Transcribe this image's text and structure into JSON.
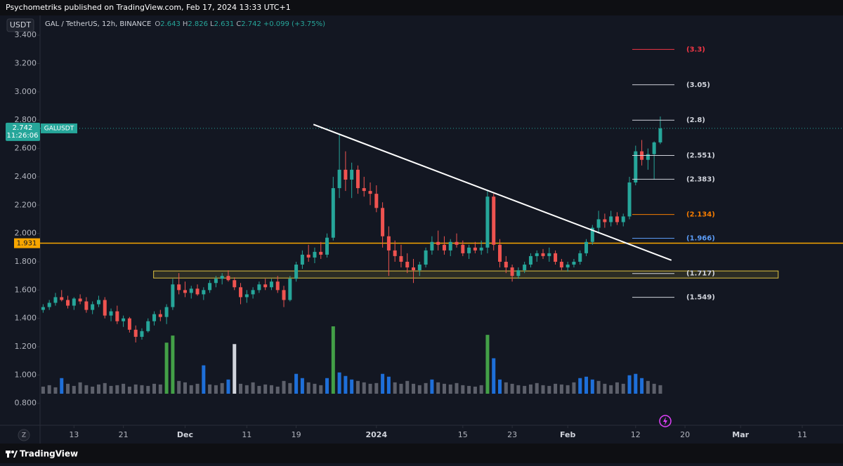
{
  "header": {
    "published": "Psychometriks published on TradingView.com, Feb 17, 2024 13:33 UTC+1"
  },
  "footer": {
    "brand": "TradingView",
    "axis_button": "Z"
  },
  "chart_data": {
    "type": "candlestick",
    "currency": "USDT",
    "symbol": "GAL / TetherUS, 12h, BINANCE",
    "ohlc_legend": [
      {
        "key": "O",
        "value": "2.643"
      },
      {
        "key": "H",
        "value": "2.826"
      },
      {
        "key": "L",
        "value": "2.631"
      },
      {
        "key": "C",
        "value": "2.742"
      }
    ],
    "change": "+0.099 (+3.75%)",
    "up_color": "#26a69a",
    "down_color": "#ef5350",
    "volume_color": "#5d606b",
    "grid": false,
    "x": [
      0,
      1,
      2,
      3,
      4,
      5,
      6,
      7,
      8,
      9,
      10,
      11,
      12,
      13,
      14,
      15,
      16,
      17,
      18,
      19,
      20,
      21,
      22,
      23,
      24,
      25,
      26,
      27,
      28,
      29,
      30,
      31,
      32,
      33,
      34,
      35,
      36,
      37,
      38,
      39,
      40,
      41,
      42,
      43,
      44,
      45,
      46,
      47,
      48,
      49,
      50,
      51,
      52,
      53,
      54,
      55,
      56,
      57,
      58,
      59,
      60,
      61,
      62,
      63,
      64,
      65,
      66,
      67,
      68,
      69,
      70,
      71,
      72,
      73,
      74,
      75,
      76,
      77,
      78,
      79,
      80,
      81,
      82,
      83,
      84,
      85,
      86,
      87,
      88,
      89,
      90,
      91,
      92,
      93,
      94,
      95,
      96,
      97,
      98,
      99,
      100
    ],
    "open": [
      1.46,
      1.48,
      1.51,
      1.55,
      1.53,
      1.49,
      1.54,
      1.52,
      1.46,
      1.5,
      1.53,
      1.42,
      1.45,
      1.38,
      1.4,
      1.32,
      1.27,
      1.31,
      1.38,
      1.43,
      1.41,
      1.48,
      1.64,
      1.6,
      1.58,
      1.61,
      1.57,
      1.6,
      1.65,
      1.68,
      1.7,
      1.67,
      1.62,
      1.55,
      1.57,
      1.6,
      1.64,
      1.62,
      1.66,
      1.6,
      1.53,
      1.68,
      1.78,
      1.85,
      1.83,
      1.87,
      1.85,
      1.97,
      2.32,
      2.45,
      2.38,
      2.45,
      2.32,
      2.3,
      2.28,
      2.18,
      1.98,
      1.88,
      1.84,
      1.8,
      1.76,
      1.74,
      1.78,
      1.88,
      1.94,
      1.92,
      1.88,
      1.94,
      1.92,
      1.86,
      1.9,
      1.88,
      1.9,
      2.26,
      1.92,
      1.8,
      1.76,
      1.7,
      1.74,
      1.78,
      1.84,
      1.86,
      1.84,
      1.86,
      1.8,
      1.76,
      1.78,
      1.8,
      1.86,
      1.94,
      2.04,
      2.1,
      2.08,
      2.12,
      2.08,
      2.12,
      2.36,
      2.58,
      2.52,
      2.56,
      2.643
    ],
    "high": [
      1.5,
      1.53,
      1.58,
      1.6,
      1.56,
      1.55,
      1.57,
      1.55,
      1.52,
      1.56,
      1.55,
      1.47,
      1.49,
      1.42,
      1.41,
      1.35,
      1.33,
      1.4,
      1.45,
      1.46,
      1.5,
      1.68,
      1.72,
      1.66,
      1.63,
      1.64,
      1.62,
      1.67,
      1.7,
      1.72,
      1.74,
      1.69,
      1.65,
      1.6,
      1.62,
      1.66,
      1.68,
      1.68,
      1.7,
      1.63,
      1.7,
      1.8,
      1.88,
      1.92,
      1.9,
      1.94,
      2.0,
      2.4,
      2.7,
      2.58,
      2.5,
      2.48,
      2.4,
      2.36,
      2.34,
      2.22,
      2.05,
      1.95,
      1.92,
      1.86,
      1.82,
      1.8,
      1.9,
      1.98,
      2.02,
      1.98,
      1.96,
      2.0,
      1.95,
      1.92,
      1.94,
      1.95,
      2.3,
      2.28,
      1.96,
      1.84,
      1.78,
      1.76,
      1.8,
      1.86,
      1.88,
      1.89,
      1.9,
      1.88,
      1.82,
      1.8,
      1.82,
      1.88,
      1.96,
      2.06,
      2.16,
      2.14,
      2.16,
      2.15,
      2.14,
      2.4,
      2.62,
      2.66,
      2.6,
      2.65,
      2.826
    ],
    "low": [
      1.44,
      1.46,
      1.49,
      1.52,
      1.47,
      1.46,
      1.5,
      1.44,
      1.43,
      1.48,
      1.4,
      1.38,
      1.36,
      1.34,
      1.3,
      1.23,
      1.25,
      1.3,
      1.35,
      1.38,
      1.36,
      1.46,
      1.57,
      1.55,
      1.54,
      1.56,
      1.53,
      1.58,
      1.62,
      1.64,
      1.66,
      1.6,
      1.5,
      1.51,
      1.54,
      1.58,
      1.6,
      1.6,
      1.58,
      1.48,
      1.52,
      1.66,
      1.75,
      1.8,
      1.79,
      1.82,
      1.83,
      1.95,
      2.25,
      2.3,
      2.25,
      2.28,
      2.26,
      2.2,
      2.15,
      1.9,
      1.7,
      1.8,
      1.76,
      1.72,
      1.65,
      1.7,
      1.76,
      1.85,
      1.88,
      1.85,
      1.84,
      1.9,
      1.84,
      1.82,
      1.86,
      1.85,
      1.86,
      1.88,
      1.76,
      1.72,
      1.66,
      1.68,
      1.72,
      1.76,
      1.8,
      1.82,
      1.8,
      1.78,
      1.74,
      1.73,
      1.76,
      1.78,
      1.84,
      1.92,
      2.0,
      2.04,
      2.05,
      2.06,
      2.05,
      2.1,
      2.34,
      2.48,
      2.45,
      2.38,
      2.631
    ],
    "close": [
      1.48,
      1.51,
      1.55,
      1.53,
      1.49,
      1.54,
      1.52,
      1.46,
      1.5,
      1.53,
      1.42,
      1.45,
      1.38,
      1.4,
      1.32,
      1.27,
      1.31,
      1.38,
      1.43,
      1.41,
      1.48,
      1.64,
      1.6,
      1.58,
      1.61,
      1.57,
      1.6,
      1.65,
      1.68,
      1.7,
      1.67,
      1.62,
      1.55,
      1.57,
      1.6,
      1.64,
      1.62,
      1.66,
      1.6,
      1.53,
      1.68,
      1.78,
      1.85,
      1.83,
      1.87,
      1.85,
      1.97,
      2.32,
      2.45,
      2.38,
      2.45,
      2.32,
      2.3,
      2.28,
      2.18,
      1.98,
      1.88,
      1.84,
      1.8,
      1.76,
      1.74,
      1.78,
      1.88,
      1.94,
      1.92,
      1.88,
      1.94,
      1.92,
      1.86,
      1.9,
      1.88,
      1.9,
      2.26,
      1.92,
      1.8,
      1.76,
      1.7,
      1.74,
      1.78,
      1.84,
      1.86,
      1.84,
      1.86,
      1.8,
      1.76,
      1.78,
      1.8,
      1.86,
      1.94,
      2.04,
      2.1,
      2.08,
      2.12,
      2.08,
      2.12,
      2.36,
      2.58,
      2.52,
      2.56,
      2.643,
      2.742
    ],
    "volume": [
      10,
      12,
      9,
      22,
      14,
      11,
      16,
      12,
      10,
      13,
      15,
      11,
      12,
      14,
      10,
      13,
      12,
      11,
      14,
      13,
      72,
      82,
      18,
      16,
      12,
      14,
      40,
      13,
      12,
      15,
      20,
      70,
      14,
      12,
      16,
      11,
      13,
      12,
      10,
      18,
      15,
      28,
      22,
      16,
      14,
      12,
      22,
      95,
      30,
      25,
      20,
      18,
      16,
      14,
      15,
      28,
      24,
      16,
      14,
      18,
      14,
      12,
      15,
      20,
      16,
      14,
      13,
      15,
      12,
      11,
      10,
      12,
      83,
      50,
      20,
      16,
      14,
      12,
      11,
      13,
      15,
      12,
      11,
      14,
      13,
      12,
      16,
      22,
      24,
      20,
      18,
      14,
      12,
      16,
      14,
      26,
      28,
      22,
      18,
      14,
      12
    ],
    "xlim": [
      -0.5,
      129.6
    ],
    "xticks": [
      {
        "value": 5,
        "label": "13"
      },
      {
        "value": 13,
        "label": "21"
      },
      {
        "value": 23,
        "label": "Dec"
      },
      {
        "value": 33,
        "label": "11"
      },
      {
        "value": 41,
        "label": "19"
      },
      {
        "value": 54,
        "label": "2024"
      },
      {
        "value": 68,
        "label": "15"
      },
      {
        "value": 76,
        "label": "23"
      },
      {
        "value": 85,
        "label": "Feb"
      },
      {
        "value": 96,
        "label": "12"
      },
      {
        "value": 104,
        "label": "20"
      },
      {
        "value": 113,
        "label": "Mar"
      },
      {
        "value": 123,
        "label": "11"
      }
    ],
    "ylim": [
      0.65,
      3.5
    ],
    "yticks": [
      {
        "value": 0.8,
        "label": "0.800"
      },
      {
        "value": 1.0,
        "label": "1.000"
      },
      {
        "value": 1.2,
        "label": "1.200"
      },
      {
        "value": 1.4,
        "label": "1.400"
      },
      {
        "value": 1.6,
        "label": "1.600"
      },
      {
        "value": 1.8,
        "label": "1.800"
      },
      {
        "value": 2.0,
        "label": "2.000"
      },
      {
        "value": 2.2,
        "label": "2.200"
      },
      {
        "value": 2.4,
        "label": "2.400"
      },
      {
        "value": 2.6,
        "label": "2.600"
      },
      {
        "value": 2.8,
        "label": "2.800"
      },
      {
        "value": 3.0,
        "label": "3.000"
      },
      {
        "value": 3.2,
        "label": "3.200"
      },
      {
        "value": 3.4,
        "label": "3.400"
      }
    ],
    "levels": [
      {
        "value": 3.3,
        "label": "(3.3)",
        "color": "#f23645"
      },
      {
        "value": 3.05,
        "label": "(3.05)",
        "color": "#d1d4dc"
      },
      {
        "value": 2.8,
        "label": "(2.8)",
        "color": "#d1d4dc"
      },
      {
        "value": 2.551,
        "label": "(2.551)",
        "color": "#d1d4dc"
      },
      {
        "value": 2.383,
        "label": "(2.383)",
        "color": "#d1d4dc"
      },
      {
        "value": 2.134,
        "label": "(2.134)",
        "color": "#f57c00"
      },
      {
        "value": 1.966,
        "label": "(1.966)",
        "color": "#5b9cf6"
      },
      {
        "value": 1.717,
        "label": "(1.717)",
        "color": "#d1d4dc"
      },
      {
        "value": 1.549,
        "label": "(1.549)",
        "color": "#d1d4dc"
      }
    ],
    "support_line": {
      "value": 1.931,
      "label": "1.931",
      "color": "#f7a600"
    },
    "zone": {
      "x": [
        17.9,
        119.1
      ],
      "y": [
        1.685,
        1.735
      ],
      "color": "#e0c341"
    },
    "trendline": {
      "x": [
        43.8,
        101.8
      ],
      "y": [
        2.77,
        1.811
      ],
      "color": "#ffffff"
    },
    "last_price": {
      "value": 2.742,
      "label": "2.742",
      "countdown": "11:26:06",
      "name": "GALUSDT"
    }
  }
}
